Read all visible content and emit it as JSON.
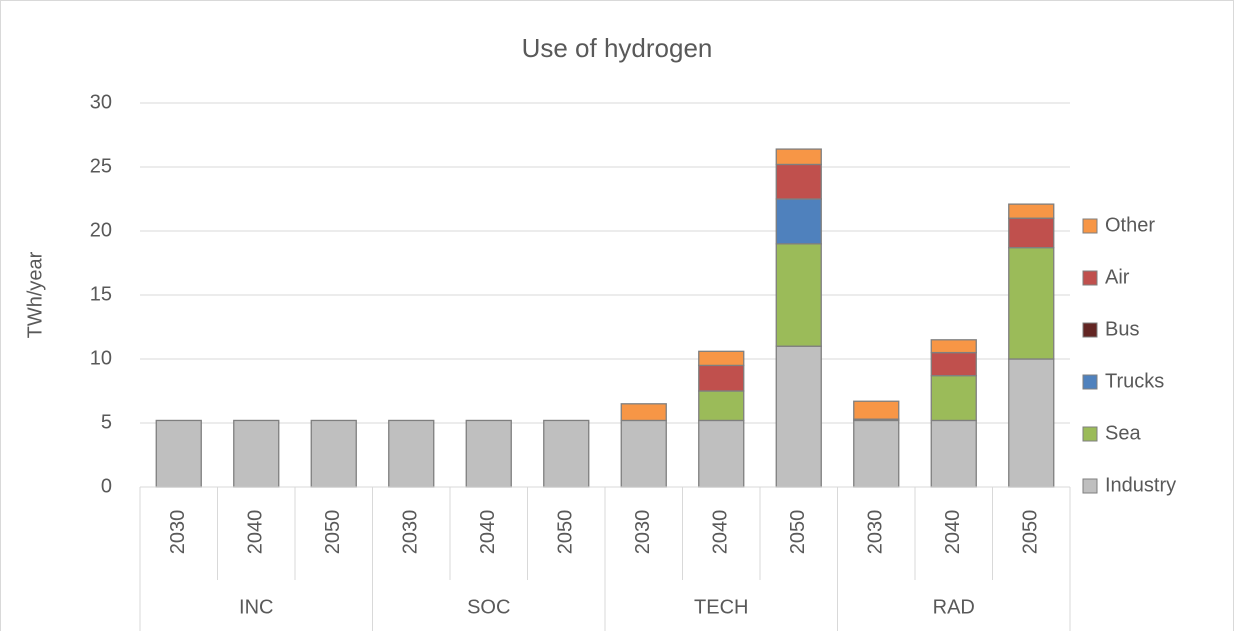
{
  "chart_data": {
    "type": "stacked-bar",
    "title": "Use of hydrogen",
    "y_label": "TWh/year",
    "categories": [
      "2030",
      "2040",
      "2050",
      "2030",
      "2040",
      "2050",
      "2030",
      "2040",
      "2050",
      "2030",
      "2040",
      "2050"
    ],
    "groups": [
      "INC",
      "SOC",
      "TECH",
      "RAD"
    ],
    "series": [
      {
        "name": "Industry",
        "color": "#bfbfbf",
        "values": [
          5.2,
          5.2,
          5.2,
          5.2,
          5.2,
          5.2,
          5.2,
          5.2,
          11,
          5.2,
          5.2,
          10
        ]
      },
      {
        "name": "Sea",
        "color": "#9bbb59",
        "values": [
          0,
          0,
          0,
          0,
          0,
          0,
          0,
          2.3,
          8,
          0.1,
          3.5,
          8.7
        ]
      },
      {
        "name": "Trucks",
        "color": "#4f81bd",
        "values": [
          0,
          0,
          0,
          0,
          0,
          0,
          0,
          0,
          3.5,
          0,
          0,
          0
        ]
      },
      {
        "name": "Bus",
        "color": "#632523",
        "values": [
          0,
          0,
          0,
          0,
          0,
          0,
          0,
          0,
          0,
          0,
          0,
          0
        ]
      },
      {
        "name": "Air",
        "color": "#c0504d",
        "values": [
          0,
          0,
          0,
          0,
          0,
          0,
          0,
          2,
          2.7,
          0,
          1.8,
          2.3
        ]
      },
      {
        "name": "Other",
        "color": "#f79646",
        "values": [
          0,
          0,
          0,
          0,
          0,
          0,
          1.3,
          1.1,
          1.2,
          1.4,
          1,
          1.1
        ]
      }
    ],
    "ylim": [
      0,
      30
    ],
    "yticks": [
      0,
      5,
      10,
      15,
      20,
      25,
      30
    ],
    "grid": true,
    "legend": "right"
  }
}
